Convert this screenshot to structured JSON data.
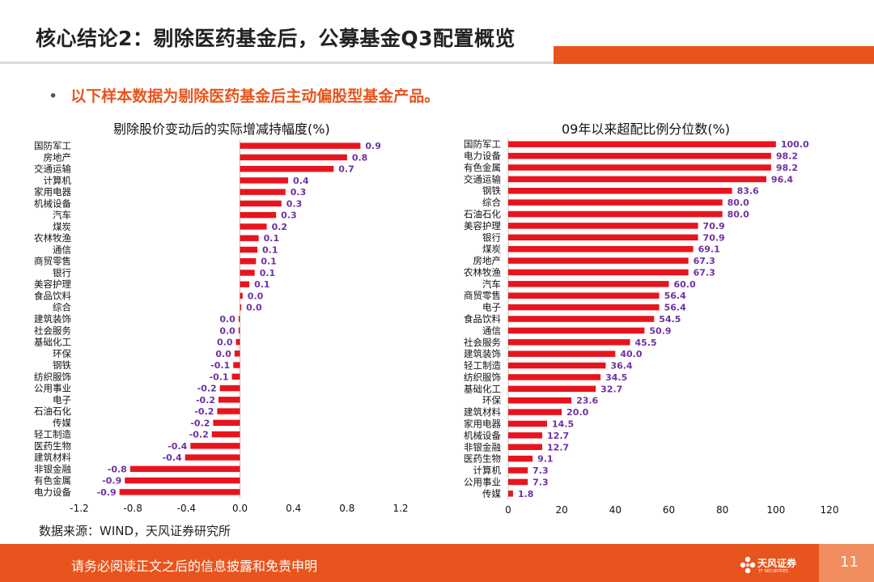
{
  "header": {
    "title": "核心结论2：剔除医药基金后，公募基金Q3配置概览",
    "bullet_dot": "•",
    "bullet": "以下样本数据为剔除医药基金后主动偏股型基金产品。"
  },
  "colors": {
    "accent": "#e8541d",
    "bar": "#e8141d",
    "label": "#7030a0"
  },
  "chart_data": [
    {
      "type": "bar",
      "orientation": "horizontal",
      "title": "剔除股价变动后的实际增减持幅度(%)",
      "categories": [
        "国防军工",
        "房地产",
        "交通运输",
        "计算机",
        "家用电器",
        "机械设备",
        "汽车",
        "煤炭",
        "农林牧渔",
        "通信",
        "商贸零售",
        "银行",
        "美容护理",
        "食品饮料",
        "综合",
        "建筑装饰",
        "社会服务",
        "基础化工",
        "环保",
        "钢铁",
        "纺织服饰",
        "公用事业",
        "电子",
        "石油石化",
        "传媒",
        "轻工制造",
        "医药生物",
        "建筑材料",
        "非银金融",
        "有色金属",
        "电力设备"
      ],
      "values": [
        0.9,
        0.8,
        0.7,
        0.36,
        0.34,
        0.31,
        0.27,
        0.2,
        0.14,
        0.13,
        0.12,
        0.11,
        0.07,
        0.02,
        0.01,
        -0.01,
        -0.01,
        -0.03,
        -0.04,
        -0.05,
        -0.06,
        -0.15,
        -0.16,
        -0.17,
        -0.2,
        -0.21,
        -0.37,
        -0.41,
        -0.82,
        -0.86,
        -0.9
      ],
      "labels": [
        "0.9",
        "0.8",
        "0.7",
        "0.4",
        "0.3",
        "0.3",
        "0.3",
        "0.2",
        "0.1",
        "0.1",
        "0.1",
        "0.1",
        "0.1",
        "0.0",
        "0.0",
        "0.0",
        "0.0",
        "0.0",
        "0.0",
        "-0.1",
        "-0.1",
        "-0.2",
        "-0.2",
        "-0.2",
        "-0.2",
        "-0.2",
        "-0.4",
        "-0.4",
        "-0.8",
        "-0.9",
        "-0.9"
      ],
      "xlim": [
        -1.2,
        1.2
      ],
      "xticks": [
        -1.2,
        -0.8,
        -0.4,
        0.0,
        0.4,
        0.8,
        1.2
      ],
      "xtick_labels": [
        "-1.2",
        "-0.8",
        "-0.4",
        "0.0",
        "0.4",
        "0.8",
        "1.2"
      ]
    },
    {
      "type": "bar",
      "orientation": "horizontal",
      "title": "09年以来超配比例分位数(%)",
      "categories": [
        "国防军工",
        "电力设备",
        "有色金属",
        "交通运输",
        "钢铁",
        "综合",
        "石油石化",
        "美容护理",
        "银行",
        "煤炭",
        "房地产",
        "农林牧渔",
        "汽车",
        "商贸零售",
        "电子",
        "食品饮料",
        "通信",
        "社会服务",
        "建筑装饰",
        "轻工制造",
        "纺织服饰",
        "基础化工",
        "环保",
        "建筑材料",
        "家用电器",
        "机械设备",
        "非银金融",
        "医药生物",
        "计算机",
        "公用事业",
        "传媒"
      ],
      "values": [
        100.0,
        98.2,
        98.2,
        96.4,
        83.6,
        80.0,
        80.0,
        70.9,
        70.9,
        69.1,
        67.3,
        67.3,
        60.0,
        56.4,
        56.4,
        54.5,
        50.9,
        45.5,
        40.0,
        36.4,
        34.5,
        32.7,
        23.6,
        20.0,
        14.5,
        12.7,
        12.7,
        9.1,
        7.3,
        7.3,
        1.8
      ],
      "labels": [
        "100.0",
        "98.2",
        "98.2",
        "96.4",
        "83.6",
        "80.0",
        "80.0",
        "70.9",
        "70.9",
        "69.1",
        "67.3",
        "67.3",
        "60.0",
        "56.4",
        "56.4",
        "54.5",
        "50.9",
        "45.5",
        "40.0",
        "36.4",
        "34.5",
        "32.7",
        "23.6",
        "20.0",
        "14.5",
        "12.7",
        "12.7",
        "9.1",
        "7.3",
        "7.3",
        "1.8"
      ],
      "xlim": [
        0,
        120
      ],
      "xticks": [
        0,
        20,
        40,
        60,
        80,
        100,
        120
      ],
      "xtick_labels": [
        "0",
        "20",
        "40",
        "60",
        "80",
        "100",
        "120"
      ]
    }
  ],
  "source": "数据来源：WIND，天风证券研究所",
  "footer": {
    "disclaimer": "请务必阅读正文之后的信息披露和免责申明",
    "logo_name": "天风证券",
    "logo_sub": "TF SECURITIES",
    "page_number": "11"
  }
}
